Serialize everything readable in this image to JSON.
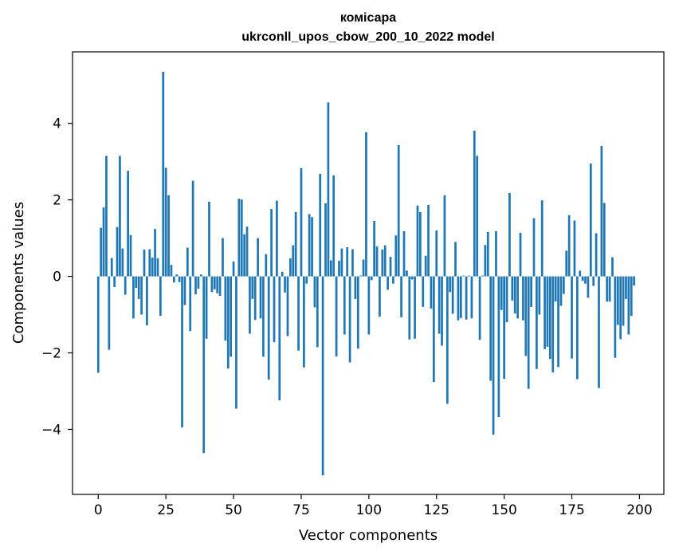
{
  "chart_data": {
    "type": "bar",
    "title": "комісара",
    "subtitle": "ukrconll_upos_cbow_200_10_2022 model",
    "xlabel": "Vector components",
    "ylabel": "Components values",
    "xlim": [
      -9.5,
      209
    ],
    "ylim": [
      -5.7,
      5.87
    ],
    "xticks": [
      0,
      25,
      50,
      75,
      100,
      125,
      150,
      175,
      200
    ],
    "yticks": [
      -4,
      -2,
      0,
      2,
      4
    ],
    "ytick_labels": [
      "−4",
      "−2",
      "0",
      "2",
      "4"
    ],
    "grid": false,
    "color": "#1f77b4",
    "values": [
      -2.52,
      1.27,
      1.8,
      3.15,
      -1.92,
      0.48,
      -0.28,
      1.29,
      3.15,
      0.73,
      -0.48,
      2.76,
      1.08,
      -1.1,
      -0.3,
      -0.59,
      -1.0,
      0.7,
      -1.28,
      0.71,
      0.49,
      1.24,
      0.47,
      -1.03,
      5.35,
      2.84,
      2.12,
      0.3,
      -0.16,
      0.05,
      -0.15,
      -3.95,
      -0.75,
      0.75,
      -1.43,
      2.5,
      -0.47,
      -0.32,
      0.05,
      -4.62,
      -1.63,
      1.95,
      -0.41,
      -0.34,
      -0.44,
      -0.51,
      1.0,
      -1.68,
      -2.41,
      -2.1,
      0.39,
      -3.46,
      2.03,
      2.01,
      1.1,
      1.3,
      -1.5,
      -0.59,
      -1.14,
      1.0,
      -1.1,
      -2.1,
      0.58,
      -2.7,
      1.76,
      -1.72,
      1.98,
      -3.24,
      0.12,
      -0.42,
      -1.56,
      0.47,
      0.81,
      1.68,
      -1.94,
      2.83,
      -2.38,
      -0.19,
      1.63,
      1.55,
      -0.81,
      -1.85,
      2.68,
      -5.2,
      1.91,
      4.55,
      0.42,
      2.64,
      -2.09,
      0.41,
      0.73,
      -1.52,
      0.76,
      -2.25,
      0.71,
      -0.59,
      -1.89,
      0.02,
      0.44,
      3.77,
      -1.52,
      -0.1,
      1.45,
      0.78,
      -1.05,
      0.7,
      0.81,
      -0.35,
      0.51,
      -0.19,
      1.07,
      3.43,
      -1.07,
      1.18,
      0.15,
      -1.65,
      -0.08,
      -1.63,
      1.85,
      1.68,
      -0.8,
      0.54,
      1.87,
      -0.84,
      -2.76,
      1.2,
      -1.5,
      -1.81,
      2.12,
      -3.33,
      -0.41,
      -0.98,
      0.9,
      -1.15,
      -1.09,
      0.02,
      -1.13,
      0.02,
      -1.1,
      3.81,
      3.15,
      -1.66,
      0.02,
      0.82,
      1.16,
      -2.73,
      -4.14,
      1.18,
      -3.68,
      -0.88,
      -2.68,
      -1.2,
      2.18,
      -0.63,
      -0.97,
      -1.1,
      1.14,
      -1.15,
      -2.08,
      -2.94,
      -0.8,
      1.52,
      -2.42,
      -1.0,
      1.99,
      -1.9,
      -1.84,
      -2.16,
      -2.51,
      -0.66,
      -2.37,
      -0.77,
      -0.46,
      0.67,
      1.6,
      -2.15,
      1.46,
      -2.69,
      0.15,
      -0.12,
      -0.19,
      -0.56,
      2.95,
      -0.25,
      1.13,
      -2.92,
      3.41,
      1.92,
      -0.66,
      -0.66,
      0.5,
      -2.13,
      -1.27,
      -1.64,
      -1.29,
      -0.59,
      -1.52,
      -1.03,
      -0.24
    ]
  }
}
